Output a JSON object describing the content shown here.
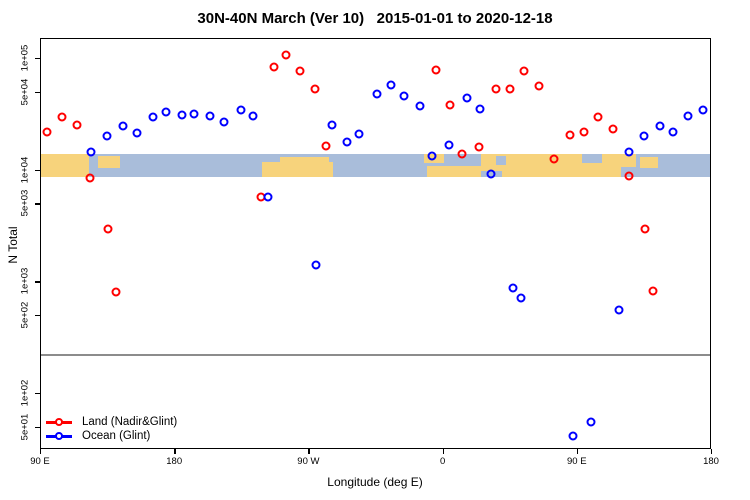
{
  "title": "30N-40N March (Ver 10)   2015-01-01 to 2020-12-18",
  "legend": {
    "land_label": "Land (Nadir&Glint)",
    "ocean_label": "Ocean (Glint)"
  },
  "colors": {
    "land_series": "#ff0000",
    "ocean_series": "#0000ff",
    "map_land": "#f7d37c",
    "map_ocean": "#a9bdda",
    "reference_line": "#8c8c8c",
    "axis": "#000000"
  },
  "chart_data": {
    "type": "scatter",
    "title": "30N-40N March (Ver 10)   2015-01-01 to 2020-12-18",
    "xlabel": "Longitude (deg E)",
    "ylabel": "N Total",
    "y_scale": "log10",
    "x_axis_note": "x axis spans 450 degrees of longitude: 90E -> 180 -> 90W -> 0 -> 90E -> 180; tick positions given in degrees east of 90E; data from 90E-180E is plotted at both ends",
    "x_ticks": [
      {
        "deg": 0,
        "label": "90 E"
      },
      {
        "deg": 90,
        "label": "180"
      },
      {
        "deg": 180,
        "label": "90 W"
      },
      {
        "deg": 270,
        "label": "0"
      },
      {
        "deg": 360,
        "label": "90 E"
      },
      {
        "deg": 450,
        "label": "180"
      }
    ],
    "y_ticks": [
      {
        "value": 100000,
        "label": "1e+05"
      },
      {
        "value": 50000,
        "label": "5e+04"
      },
      {
        "value": 10000,
        "label": "1e+04"
      },
      {
        "value": 5000,
        "label": "5e+03"
      },
      {
        "value": 1000,
        "label": "1e+03"
      },
      {
        "value": 500,
        "label": "5e+02"
      },
      {
        "value": 100,
        "label": "1e+02"
      },
      {
        "value": 50,
        "label": "5e+01"
      }
    ],
    "legend_position": "bottom-left",
    "reference_line_y": 230,
    "map_strip": {
      "description": "decorative world coastline strip for the 30N-40N latitude band",
      "value_top": 14000,
      "value_bottom": 8800,
      "land_patches": [
        [
          0,
          32,
          0,
          100
        ],
        [
          38,
          53,
          5,
          60
        ],
        [
          148,
          196,
          35,
          100
        ],
        [
          160,
          193,
          12,
          100
        ],
        [
          257,
          270,
          0,
          40
        ],
        [
          259,
          303,
          52,
          100
        ],
        [
          295,
          389,
          0,
          100
        ],
        [
          389,
          399,
          0,
          55
        ],
        [
          402,
          414,
          12,
          62
        ]
      ],
      "water_patches": [
        [
          305,
          312,
          5,
          45
        ],
        [
          295,
          309,
          72,
          100
        ],
        [
          363,
          376,
          0,
          38
        ]
      ]
    },
    "series": [
      {
        "name": "Land (Nadir&Glint)",
        "color": "#ff0000",
        "points": [
          [
            4,
            22000
          ],
          [
            14,
            30000
          ],
          [
            24,
            25500
          ],
          [
            33,
            8600
          ],
          [
            45,
            3000
          ],
          [
            50,
            820
          ],
          [
            147.5,
            5800
          ],
          [
            156.3,
            84000
          ],
          [
            164.3,
            109000
          ],
          [
            173.7,
            78000
          ],
          [
            183.7,
            54000
          ],
          [
            191,
            16600
          ],
          [
            264.9,
            80000
          ],
          [
            274.3,
            38800
          ],
          [
            282.5,
            14000
          ],
          [
            294,
            16300
          ],
          [
            305.1,
            53800
          ],
          [
            314.5,
            53800
          ],
          [
            323.9,
            78200
          ],
          [
            334,
            57300
          ],
          [
            344,
            12700
          ],
          [
            354.8,
            20900
          ],
          [
            364.2,
            22200
          ],
          [
            373.6,
            30000
          ],
          [
            383.6,
            23600
          ],
          [
            394.4,
            9000
          ],
          [
            405.1,
            3000
          ],
          [
            410.5,
            830
          ]
        ]
      },
      {
        "name": "Ocean (Glint)",
        "color": "#0000ff",
        "points": [
          [
            33.5,
            14700
          ],
          [
            44.3,
            20500
          ],
          [
            55,
            25100
          ],
          [
            64.4,
            21700
          ],
          [
            75.1,
            30300
          ],
          [
            83.8,
            33500
          ],
          [
            94.6,
            31500
          ],
          [
            102.6,
            32200
          ],
          [
            113.3,
            30900
          ],
          [
            122.7,
            27300
          ],
          [
            134.1,
            34900
          ],
          [
            142.2,
            30900
          ],
          [
            152.2,
            5800
          ],
          [
            184.4,
            1430
          ],
          [
            195.2,
            25600
          ],
          [
            205.2,
            18100
          ],
          [
            213.3,
            21300
          ],
          [
            225.3,
            48600
          ],
          [
            234.7,
            58500
          ],
          [
            243.5,
            46700
          ],
          [
            254.2,
            38000
          ],
          [
            262.2,
            13500
          ],
          [
            273.6,
            17000
          ],
          [
            285.7,
            44800
          ],
          [
            294.4,
            35700
          ],
          [
            301.8,
            9400
          ],
          [
            316.6,
            890
          ],
          [
            321.9,
            720
          ],
          [
            356.8,
            42
          ],
          [
            368.9,
            56
          ],
          [
            387.6,
            570
          ],
          [
            394.4,
            14800
          ],
          [
            404.4,
            20500
          ],
          [
            415.2,
            25100
          ],
          [
            423.9,
            22400
          ],
          [
            433.9,
            31000
          ],
          [
            444,
            34900
          ]
        ]
      }
    ]
  }
}
